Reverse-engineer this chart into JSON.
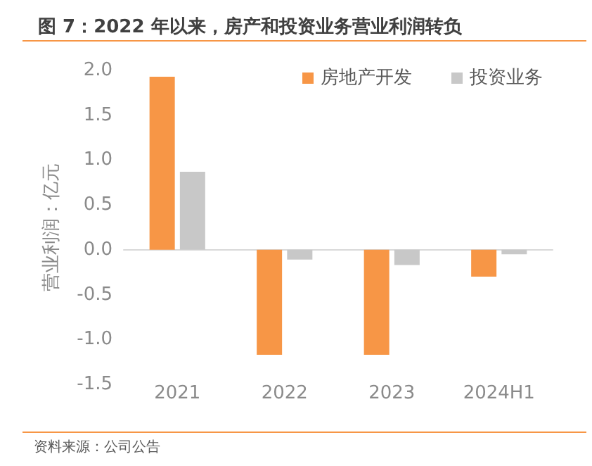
{
  "chart_data": {
    "type": "bar",
    "title": "图 7：2022 年以来，房产和投资业务营业利润转负",
    "ylabel": "营业利润：亿元",
    "categories": [
      "2021",
      "2022",
      "2023",
      "2024H1"
    ],
    "series": [
      {
        "name": "房地产开发",
        "color": "#f79646",
        "values": [
          1.93,
          -1.17,
          -1.17,
          -0.3
        ]
      },
      {
        "name": "投资业务",
        "color": "#c8c8c8",
        "values": [
          0.87,
          -0.11,
          -0.17,
          -0.05
        ]
      }
    ],
    "ylim": [
      -1.5,
      2.0
    ],
    "yticks": [
      -1.5,
      {
        "value": -1,
        "label": "-1.0"
      },
      -0.5,
      {
        "value": 0,
        "label": "0.0"
      },
      0.5,
      {
        "value": 1,
        "label": "1.0"
      },
      1.5,
      {
        "value": 2,
        "label": "2.0"
      }
    ],
    "legend": "top right",
    "annotations": [
      "资料来源：公司公告"
    ]
  }
}
